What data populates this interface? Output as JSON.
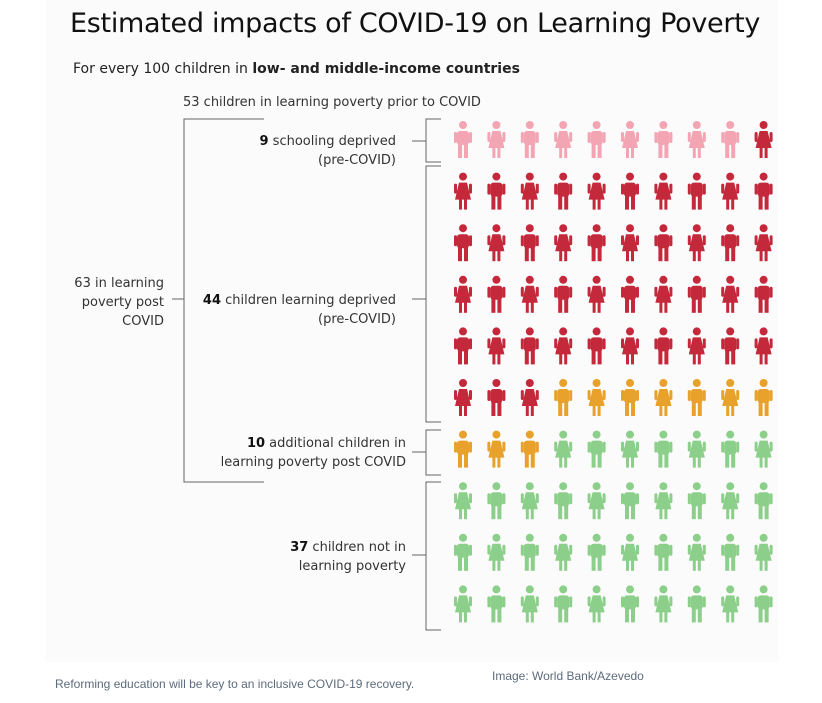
{
  "title": "Estimated impacts of COVID-19 on Learning Poverty",
  "subtitle": {
    "prefix": "For every 100 children in ",
    "emphasis": "low- and middle-income countries"
  },
  "top_label": "53 children in learning poverty prior to COVID",
  "left_label": "63 in learning poverty post COVID",
  "groups": [
    {
      "count": "9",
      "text": " schooling deprived (pre-COVID)"
    },
    {
      "count": "44",
      "text": " children learning deprived (pre-COVID)"
    },
    {
      "count": "10",
      "text": " additional children in learning poverty post COVID"
    },
    {
      "count": "37",
      "text": " children not in learning poverty"
    }
  ],
  "caption": "Reforming education will be key to an inclusive COVID-19 recovery.",
  "credit": "Image: World Bank/Azevedo",
  "chart_data": {
    "type": "pictogram",
    "total": 100,
    "grid_columns": 10,
    "grid_rows": 10,
    "categories": [
      "schooling deprived (pre-COVID)",
      "children learning deprived (pre-COVID)",
      "additional children in learning poverty post COVID",
      "children not in learning poverty"
    ],
    "values": [
      9,
      44,
      10,
      37
    ],
    "colors": [
      "#f3a5b3",
      "#c4283b",
      "#e8a22c",
      "#8ccf8a"
    ],
    "figure_pattern": [
      "male",
      "female"
    ]
  }
}
